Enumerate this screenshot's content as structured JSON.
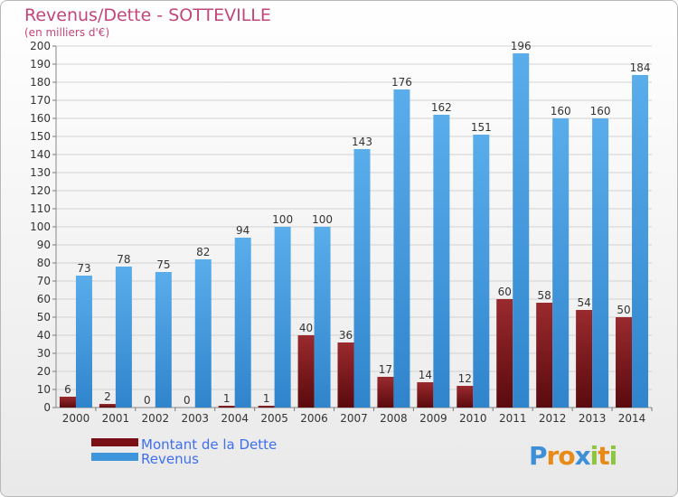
{
  "chart_data": {
    "type": "bar",
    "title": "Revenus/Dette - SOTTEVILLE",
    "subtitle": "(en milliers d'€)",
    "categories": [
      "2000",
      "2001",
      "2002",
      "2003",
      "2004",
      "2005",
      "2006",
      "2007",
      "2008",
      "2009",
      "2010",
      "2011",
      "2012",
      "2013",
      "2014"
    ],
    "series": [
      {
        "name": "Montant de la Dette",
        "color": "#7a1016",
        "values": [
          6,
          2,
          0,
          0,
          1,
          1,
          40,
          36,
          17,
          14,
          12,
          60,
          58,
          54,
          50
        ]
      },
      {
        "name": "Revenus",
        "color": "#3d95dc",
        "values": [
          73,
          78,
          75,
          82,
          94,
          100,
          100,
          143,
          176,
          162,
          151,
          196,
          160,
          160,
          184
        ]
      }
    ],
    "ylim": [
      0,
      200
    ],
    "ytick_step": 10,
    "grid": true,
    "legend_position": "bottom-left"
  },
  "logo": {
    "letters": [
      "P",
      "r",
      "o",
      "x",
      "i",
      "t",
      "i"
    ],
    "colors": [
      "#3d8fd8",
      "#e88a1a",
      "#e88a1a",
      "#3d8fd8",
      "#8cc63e",
      "#e88a1a",
      "#8cc63e"
    ]
  }
}
